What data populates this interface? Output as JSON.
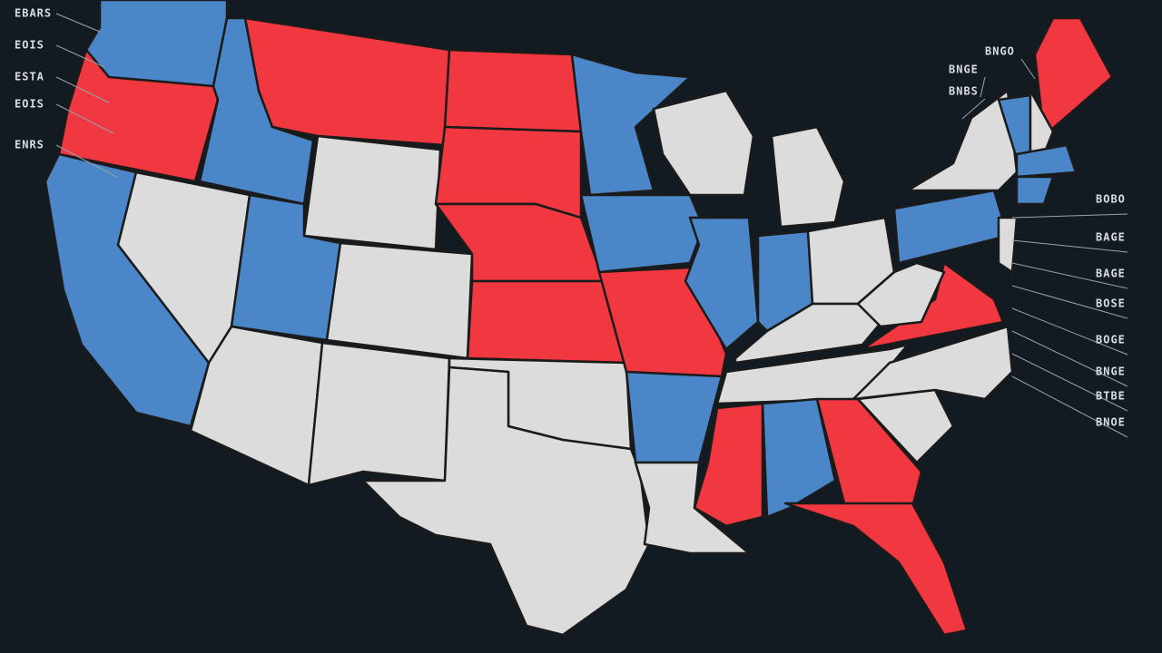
{
  "left_labels": [
    "EBARS",
    "EOIS",
    "ESTA",
    "EOIS",
    "ENRS"
  ],
  "right_labels_top": [
    "BNGO",
    "BNGE",
    "BNBS"
  ],
  "right_labels": [
    "BOBO",
    "BAGE",
    "BAGE",
    "BOSE",
    "BOGE",
    "BNGE",
    "BTBE",
    "BNOE"
  ]
}
